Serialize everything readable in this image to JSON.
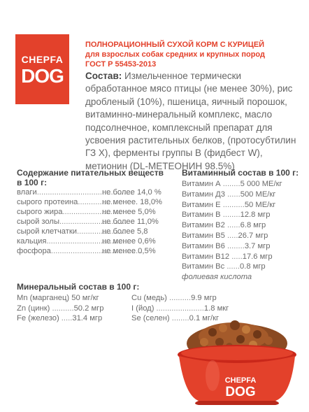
{
  "logo": {
    "line1": "CHEPFA",
    "line2": "DOG"
  },
  "title": {
    "line1": "ПОЛНОРАЦИОННЫЙ СУХОЙ КОРМ С КУРИЦЕЙ",
    "line2": "для взрослых собак средних и крупных пород",
    "line3": "ГОСТ Р 55453-2013"
  },
  "composition": {
    "label": "Состав:",
    "text": "Измельченное термически обработанное мясо птицы (не менее 30%), рис дробленый (10%), пшеница, яичный порошок, витаминно-минеральный комплекс, масло подсолнечное, комплексный препарат для усвоения растительных белков, (протосубтилин ГЗ X), ферменты группы В (фидбест W), метионин (DL-МЕТЕОНИН 98.5%)"
  },
  "nutrients": {
    "title": "Содержание питательных веществ в 100 г:",
    "rows": [
      {
        "name": "влаги",
        "dots": "............................................",
        "value": "не более 14,0 %"
      },
      {
        "name": "сырого протеина",
        "dots": "..................",
        "value": "не менее. 18,0%"
      },
      {
        "name": "сырого  жира",
        "dots": "...........................",
        "value": "не менее 5,0%"
      },
      {
        "name": "сырой золы",
        "dots": "...............................",
        "value": "не более 11,0%"
      },
      {
        "name": "сырой клетчатки",
        "dots": "......................",
        "value": "не более 5,8"
      },
      {
        "name": "кальция",
        "dots": ".......................................",
        "value": "не менее 0,6%"
      },
      {
        "name": "фосфора",
        "dots": "..........................................",
        "value": "не менее 0,5%"
      }
    ]
  },
  "vitamins": {
    "title": "Витаминный состав в 100 г:",
    "rows": [
      {
        "name": "Витамин А",
        "dots": "........",
        "value": "5 000 МЕ/кг"
      },
      {
        "name": "Витамин Д3",
        "dots": "......",
        "value": "500 МЕ/кг"
      },
      {
        "name": "Витамин Е",
        "dots": "..........",
        "value": "50 МЕ/кг"
      },
      {
        "name": "Витамин В",
        "dots": "........",
        "value": "12.8 мгр"
      },
      {
        "name": "Витамин В2",
        "dots": "......",
        "value": "6.8 мгр"
      },
      {
        "name": "Витамин В5",
        "dots": ".....",
        "value": "26.7 мгр"
      },
      {
        "name": "Витамин В6",
        "dots": "........",
        "value": "3.7 мгр"
      },
      {
        "name": "Витамин В12",
        "dots": ".....",
        "value": "17.6 мгр"
      },
      {
        "name": "Витамин Вс",
        "dots": "......",
        "value": "0.8 мгр"
      }
    ],
    "note": "фолиевая кислота"
  },
  "minerals": {
    "title": "Минеральный состав в 100 г:",
    "left": [
      {
        "name": "Mn (марганец)",
        "dots": "",
        "value": "50 мг/кг"
      },
      {
        "name": "Zn (цинк)",
        "dots": "..........",
        "value": "50.2 мгр"
      },
      {
        "name": "Fe (железо)",
        "dots": ".....",
        "value": "31.4 мгр"
      }
    ],
    "right": [
      {
        "name": "Cu (медь)",
        "dots": "..........",
        "value": "9.9 мгр"
      },
      {
        "name": "I (йод)",
        "dots": "......................",
        "value": "1.8 мкг"
      },
      {
        "name": "Se (селен)",
        "dots": "........",
        "value": "0.1 мг/кг"
      }
    ]
  },
  "bowl": {
    "line1": "CHEPFA",
    "line2": "DOG"
  },
  "colors": {
    "brand_red": "#e3412b",
    "text_gray": "#6b6b6b",
    "heading": "#444444"
  }
}
